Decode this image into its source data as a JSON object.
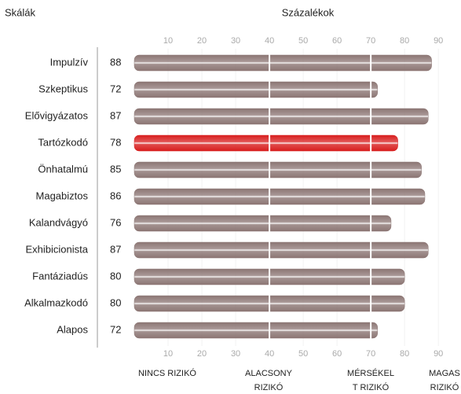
{
  "chart_data": {
    "type": "bar",
    "title": "Százalékok",
    "category_label": "Skálák",
    "categories": [
      "Impulzív",
      "Szkeptikus",
      "Elővigyázatos",
      "Tartózkodó",
      "Önhatalmú",
      "Magabiztos",
      "Kalandvágyó",
      "Exhibicionista",
      "Fantáziadús",
      "Alkalmazkodó",
      "Alapos"
    ],
    "values": [
      88,
      72,
      87,
      78,
      85,
      86,
      76,
      87,
      80,
      80,
      72
    ],
    "colors": [
      "#8c7674",
      "#8c7674",
      "#8c7674",
      "#d81e1e",
      "#8c7674",
      "#8c7674",
      "#8c7674",
      "#8c7674",
      "#8c7674",
      "#8c7674",
      "#8c7674"
    ],
    "xlim": [
      0,
      96
    ],
    "xticks": [
      10,
      20,
      30,
      40,
      50,
      60,
      70,
      80,
      90
    ],
    "zone_lines": [
      40,
      70
    ],
    "zones": [
      [
        "NINCS RIZIKÓ"
      ],
      [
        "ALACSONY",
        "RIZIKÓ"
      ],
      [
        "MÉRSÉKEL",
        "T RIZIKÓ"
      ],
      [
        "MAGAS",
        "RIZIKÓ"
      ]
    ]
  }
}
